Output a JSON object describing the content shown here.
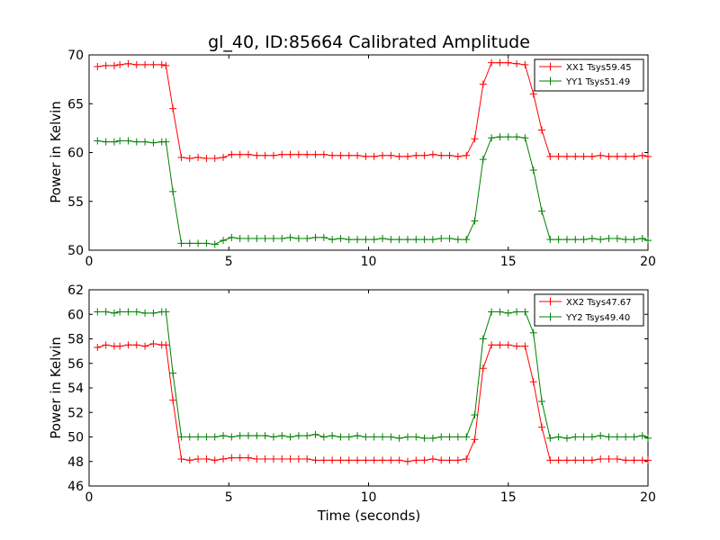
{
  "title": "gl_40, ID:85664 Calibrated Amplitude",
  "chart_data": [
    {
      "type": "line",
      "title": "gl_40, ID:85664 Calibrated Amplitude",
      "xlabel": "",
      "ylabel": "Power in Kelvin",
      "xlim": [
        0,
        20
      ],
      "ylim": [
        50,
        70
      ],
      "xticks": [
        "0",
        "5",
        "10",
        "15",
        "20"
      ],
      "yticks": [
        "50",
        "55",
        "60",
        "65",
        "70"
      ],
      "legend_position": "top-right",
      "series": [
        {
          "name": "XX1 Tsys59.45",
          "color": "#ff0000",
          "x": [
            0.3,
            0.6,
            0.9,
            1.1,
            1.4,
            1.7,
            2.0,
            2.3,
            2.6,
            2.75,
            3.0,
            3.3,
            3.6,
            3.9,
            4.2,
            4.5,
            4.8,
            5.1,
            5.4,
            5.7,
            6.0,
            6.3,
            6.6,
            6.9,
            7.2,
            7.5,
            7.8,
            8.1,
            8.4,
            8.7,
            9.0,
            9.3,
            9.6,
            9.9,
            10.2,
            10.5,
            10.8,
            11.1,
            11.4,
            11.7,
            12.0,
            12.3,
            12.6,
            12.9,
            13.2,
            13.5,
            13.8,
            14.1,
            14.4,
            14.7,
            15.0,
            15.3,
            15.6,
            15.9,
            16.2,
            16.5,
            16.8,
            17.1,
            17.4,
            17.7,
            18.0,
            18.3,
            18.6,
            18.9,
            19.2,
            19.5,
            19.8,
            20.0
          ],
          "y": [
            68.8,
            68.9,
            68.9,
            69.0,
            69.1,
            69.0,
            69.0,
            69.0,
            69.0,
            68.9,
            64.5,
            59.5,
            59.4,
            59.5,
            59.4,
            59.4,
            59.5,
            59.8,
            59.8,
            59.8,
            59.7,
            59.7,
            59.7,
            59.8,
            59.8,
            59.8,
            59.8,
            59.8,
            59.8,
            59.7,
            59.7,
            59.7,
            59.7,
            59.6,
            59.6,
            59.7,
            59.7,
            59.6,
            59.6,
            59.7,
            59.7,
            59.8,
            59.7,
            59.7,
            59.6,
            59.7,
            61.4,
            67.0,
            69.2,
            69.2,
            69.2,
            69.1,
            69.0,
            66.0,
            62.3,
            59.6,
            59.6,
            59.6,
            59.6,
            59.6,
            59.6,
            59.7,
            59.6,
            59.6,
            59.6,
            59.6,
            59.7,
            59.6
          ]
        },
        {
          "name": "YY1 Tsys51.49",
          "color": "#008000",
          "x": [
            0.3,
            0.6,
            0.9,
            1.1,
            1.4,
            1.7,
            2.0,
            2.3,
            2.6,
            2.75,
            3.0,
            3.3,
            3.6,
            3.9,
            4.2,
            4.5,
            4.8,
            5.1,
            5.4,
            5.7,
            6.0,
            6.3,
            6.6,
            6.9,
            7.2,
            7.5,
            7.8,
            8.1,
            8.4,
            8.7,
            9.0,
            9.3,
            9.6,
            9.9,
            10.2,
            10.5,
            10.8,
            11.1,
            11.4,
            11.7,
            12.0,
            12.3,
            12.6,
            12.9,
            13.2,
            13.5,
            13.8,
            14.1,
            14.4,
            14.7,
            15.0,
            15.3,
            15.6,
            15.9,
            16.2,
            16.5,
            16.8,
            17.1,
            17.4,
            17.7,
            18.0,
            18.3,
            18.6,
            18.9,
            19.2,
            19.5,
            19.8,
            20.0
          ],
          "y": [
            61.2,
            61.1,
            61.1,
            61.2,
            61.2,
            61.1,
            61.1,
            61.0,
            61.1,
            61.1,
            56.0,
            50.7,
            50.7,
            50.7,
            50.7,
            50.6,
            51.0,
            51.3,
            51.2,
            51.2,
            51.2,
            51.2,
            51.2,
            51.2,
            51.3,
            51.2,
            51.2,
            51.3,
            51.3,
            51.1,
            51.2,
            51.1,
            51.1,
            51.1,
            51.1,
            51.2,
            51.1,
            51.1,
            51.1,
            51.1,
            51.1,
            51.1,
            51.2,
            51.2,
            51.1,
            51.1,
            53.0,
            59.3,
            61.5,
            61.6,
            61.6,
            61.6,
            61.5,
            58.2,
            54.0,
            51.1,
            51.1,
            51.1,
            51.1,
            51.1,
            51.2,
            51.1,
            51.2,
            51.2,
            51.1,
            51.1,
            51.2,
            51.0
          ]
        }
      ]
    },
    {
      "type": "line",
      "title": "",
      "xlabel": "Time (seconds)",
      "ylabel": "Power in Kelvin",
      "xlim": [
        0,
        20
      ],
      "ylim": [
        46,
        62
      ],
      "xticks": [
        "0",
        "5",
        "10",
        "15",
        "20"
      ],
      "yticks": [
        "46",
        "48",
        "50",
        "52",
        "54",
        "56",
        "58",
        "60",
        "62"
      ],
      "legend_position": "top-right",
      "series": [
        {
          "name": "XX2 Tsys47.67",
          "color": "#ff0000",
          "x": [
            0.3,
            0.6,
            0.9,
            1.1,
            1.4,
            1.7,
            2.0,
            2.3,
            2.6,
            2.75,
            3.0,
            3.3,
            3.6,
            3.9,
            4.2,
            4.5,
            4.8,
            5.1,
            5.4,
            5.7,
            6.0,
            6.3,
            6.6,
            6.9,
            7.2,
            7.5,
            7.8,
            8.1,
            8.4,
            8.7,
            9.0,
            9.3,
            9.6,
            9.9,
            10.2,
            10.5,
            10.8,
            11.1,
            11.4,
            11.7,
            12.0,
            12.3,
            12.6,
            12.9,
            13.2,
            13.5,
            13.8,
            14.1,
            14.4,
            14.7,
            15.0,
            15.3,
            15.6,
            15.9,
            16.2,
            16.5,
            16.8,
            17.1,
            17.4,
            17.7,
            18.0,
            18.3,
            18.6,
            18.9,
            19.2,
            19.5,
            19.8,
            20.0
          ],
          "y": [
            57.3,
            57.5,
            57.4,
            57.4,
            57.5,
            57.5,
            57.4,
            57.6,
            57.5,
            57.5,
            53.0,
            48.2,
            48.1,
            48.2,
            48.2,
            48.1,
            48.2,
            48.3,
            48.3,
            48.3,
            48.2,
            48.2,
            48.2,
            48.2,
            48.2,
            48.2,
            48.2,
            48.1,
            48.1,
            48.1,
            48.1,
            48.1,
            48.1,
            48.1,
            48.1,
            48.1,
            48.1,
            48.1,
            48.0,
            48.1,
            48.1,
            48.2,
            48.1,
            48.1,
            48.1,
            48.2,
            49.8,
            55.6,
            57.5,
            57.5,
            57.5,
            57.4,
            57.4,
            54.5,
            50.8,
            48.1,
            48.1,
            48.1,
            48.1,
            48.1,
            48.1,
            48.2,
            48.2,
            48.2,
            48.1,
            48.1,
            48.1,
            48.1
          ]
        },
        {
          "name": "YY2 Tsys49.40",
          "color": "#008000",
          "x": [
            0.3,
            0.6,
            0.9,
            1.1,
            1.4,
            1.7,
            2.0,
            2.3,
            2.6,
            2.75,
            3.0,
            3.3,
            3.6,
            3.9,
            4.2,
            4.5,
            4.8,
            5.1,
            5.4,
            5.7,
            6.0,
            6.3,
            6.6,
            6.9,
            7.2,
            7.5,
            7.8,
            8.1,
            8.4,
            8.7,
            9.0,
            9.3,
            9.6,
            9.9,
            10.2,
            10.5,
            10.8,
            11.1,
            11.4,
            11.7,
            12.0,
            12.3,
            12.6,
            12.9,
            13.2,
            13.5,
            13.8,
            14.1,
            14.4,
            14.7,
            15.0,
            15.3,
            15.6,
            15.9,
            16.2,
            16.5,
            16.8,
            17.1,
            17.4,
            17.7,
            18.0,
            18.3,
            18.6,
            18.9,
            19.2,
            19.5,
            19.8,
            20.0
          ],
          "y": [
            60.2,
            60.2,
            60.1,
            60.2,
            60.2,
            60.2,
            60.1,
            60.1,
            60.2,
            60.2,
            55.2,
            50.0,
            50.0,
            50.0,
            50.0,
            50.0,
            50.1,
            50.0,
            50.1,
            50.1,
            50.1,
            50.1,
            50.0,
            50.1,
            50.0,
            50.1,
            50.1,
            50.2,
            50.0,
            50.1,
            50.0,
            50.0,
            50.1,
            50.0,
            50.0,
            50.0,
            50.0,
            49.9,
            50.0,
            50.0,
            49.9,
            49.9,
            50.0,
            50.0,
            50.0,
            50.0,
            51.8,
            58.0,
            60.2,
            60.2,
            60.1,
            60.2,
            60.2,
            58.5,
            52.9,
            49.9,
            50.0,
            49.9,
            50.0,
            50.0,
            50.0,
            50.1,
            50.0,
            50.0,
            50.0,
            50.0,
            50.1,
            49.9
          ]
        }
      ]
    }
  ]
}
